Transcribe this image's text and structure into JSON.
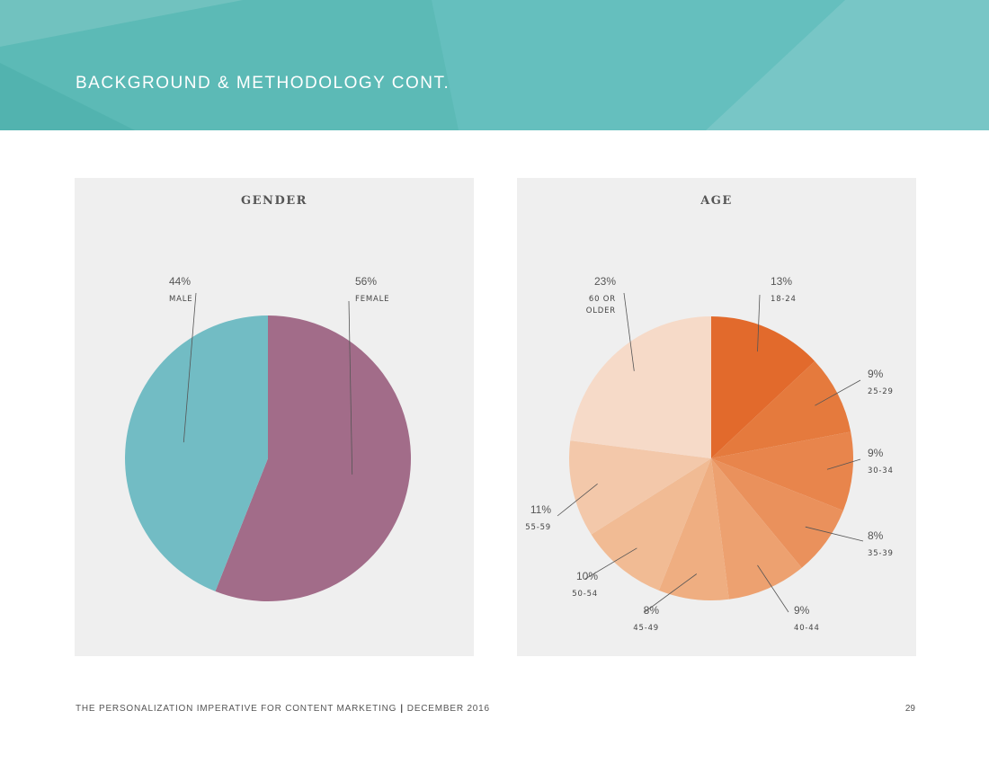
{
  "page": {
    "title": "BACKGROUND & METHODOLOGY CONT.",
    "footer_text": "THE PERSONALIZATION IMPERATIVE FOR CONTENT MARKETING",
    "footer_separator": "|",
    "footer_date": "DECEMBER 2016",
    "page_number": "29"
  },
  "colors": {
    "banner": "#5cbab6",
    "male": "#72bcc4",
    "female": "#a26c89",
    "panel_bg": "#efefef"
  },
  "chart_data": [
    {
      "type": "pie",
      "title": "GENDER",
      "slices": [
        {
          "label": "FEMALE",
          "value": 56,
          "display": "56%",
          "color": "#a26c89"
        },
        {
          "label": "MALE",
          "value": 44,
          "display": "44%",
          "color": "#72bcc4"
        }
      ]
    },
    {
      "type": "pie",
      "title": "AGE",
      "slices": [
        {
          "label": "18-24",
          "value": 13,
          "display": "13%",
          "color": "#e26a2c"
        },
        {
          "label": "25-29",
          "value": 9,
          "display": "9%",
          "color": "#e57a3d"
        },
        {
          "label": "30-34",
          "value": 9,
          "display": "9%",
          "color": "#e8854c"
        },
        {
          "label": "35-39",
          "value": 8,
          "display": "8%",
          "color": "#ea915c"
        },
        {
          "label": "40-44",
          "value": 9,
          "display": "9%",
          "color": "#eda170"
        },
        {
          "label": "45-49",
          "value": 8,
          "display": "8%",
          "color": "#efae81"
        },
        {
          "label": "50-54",
          "value": 10,
          "display": "10%",
          "color": "#f1bb94"
        },
        {
          "label": "55-59",
          "value": 11,
          "display": "11%",
          "color": "#f3c8aa"
        },
        {
          "label": "60 OR OLDER",
          "value": 23,
          "display": "23%",
          "color": "#f6dac8"
        }
      ]
    }
  ]
}
